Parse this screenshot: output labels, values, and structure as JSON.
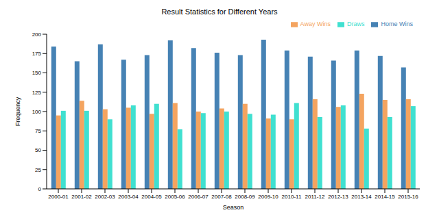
{
  "chart_data": {
    "type": "bar",
    "title": "Result Statistics for Different Years",
    "x_label": "Season",
    "y_label": "Frequency",
    "categories": [
      "2000-01",
      "2001-02",
      "2002-03",
      "2003-04",
      "2004-05",
      "2005-06",
      "2006-07",
      "2007-08",
      "2008-09",
      "2009-10",
      "2010-11",
      "2011-12",
      "2012-13",
      "2013-14",
      "2014-15",
      "2015-16"
    ],
    "series": [
      {
        "name": "Home Wins",
        "color": "#4682b4",
        "values": [
          184,
          165,
          187,
          167,
          173,
          192,
          182,
          176,
          173,
          193,
          179,
          171,
          166,
          179,
          172,
          157
        ]
      },
      {
        "name": "Away Wins",
        "color": "#f4a460",
        "values": [
          95,
          114,
          103,
          105,
          97,
          111,
          100,
          104,
          110,
          91,
          90,
          116,
          106,
          123,
          115,
          116
        ]
      },
      {
        "name": "Draws",
        "color": "#40e0d0",
        "values": [
          101,
          101,
          90,
          108,
          110,
          77,
          98,
          100,
          97,
          96,
          111,
          93,
          108,
          78,
          93,
          107
        ]
      }
    ],
    "ylim": [
      0,
      200
    ],
    "yticks": [
      0,
      25,
      50,
      75,
      100,
      125,
      150,
      175,
      200
    ],
    "grid": false,
    "legend": "upper right"
  }
}
